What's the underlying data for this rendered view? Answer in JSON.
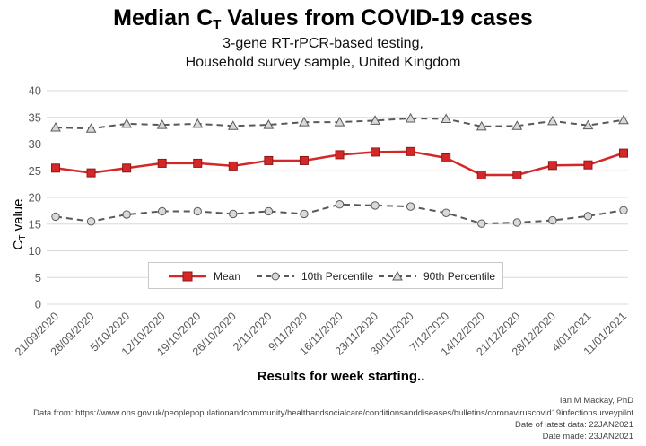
{
  "title": {
    "prefix": "Median C",
    "subscript": "T",
    "suffix": " Values from COVID-19 cases"
  },
  "subtitle_lines": [
    "3-gene RT-rPCR-based testing,",
    "Household survey sample, United Kingdom"
  ],
  "credits": {
    "author": "Ian M Mackay, PhD",
    "source": "Data from: https://www.ons.gov.uk/peoplepopulationandcommunity/healthandsocialcare/conditionsanddiseases/bulletins/coronaviruscovid19infectionsurveypilot",
    "latest": "Date of latest data: 22JAN2021",
    "made": "Date made: 23JAN2021"
  },
  "colors": {
    "mean": "#d62728",
    "mean_border": "#8b1a1a",
    "percentile": "#595959",
    "marker_fill": "#d9d9d9",
    "grid": "#d9d9d9"
  },
  "chart_data": {
    "type": "line",
    "title": "Median CT Values from COVID-19 cases",
    "xlabel": "Results for week starting..",
    "ylabel": {
      "main": "C",
      "sub": "T",
      "rest": " value"
    },
    "ylim": [
      0,
      40
    ],
    "yticks": [
      0,
      5,
      10,
      15,
      20,
      25,
      30,
      35,
      40
    ],
    "grid": true,
    "legend_position": "bottom-center",
    "categories": [
      "21/09/2020",
      "28/09/2020",
      "5/10/2020",
      "12/10/2020",
      "19/10/2020",
      "26/10/2020",
      "2/11/2020",
      "9/11/2020",
      "16/11/2020",
      "23/11/2020",
      "30/11/2020",
      "7/12/2020",
      "14/12/2020",
      "21/12/2020",
      "28/12/2020",
      "4/01/2021",
      "11/01/2021"
    ],
    "series": [
      {
        "name": "Mean",
        "style": "solid-square",
        "values": [
          25.5,
          24.6,
          25.5,
          26.4,
          26.4,
          25.9,
          26.9,
          26.9,
          28.0,
          28.5,
          28.6,
          27.4,
          24.2,
          24.2,
          26.0,
          26.1,
          28.3
        ]
      },
      {
        "name": "10th Percentile",
        "style": "dashed-circle",
        "values": [
          16.4,
          15.5,
          16.8,
          17.4,
          17.4,
          16.9,
          17.4,
          16.9,
          18.7,
          18.5,
          18.3,
          17.1,
          15.1,
          15.3,
          15.7,
          16.5,
          17.6
        ]
      },
      {
        "name": "90th Percentile",
        "style": "dashed-triangle",
        "values": [
          33.1,
          32.9,
          33.8,
          33.6,
          33.8,
          33.4,
          33.6,
          34.1,
          34.1,
          34.4,
          34.8,
          34.7,
          33.3,
          33.4,
          34.3,
          33.5,
          34.5
        ]
      }
    ]
  }
}
